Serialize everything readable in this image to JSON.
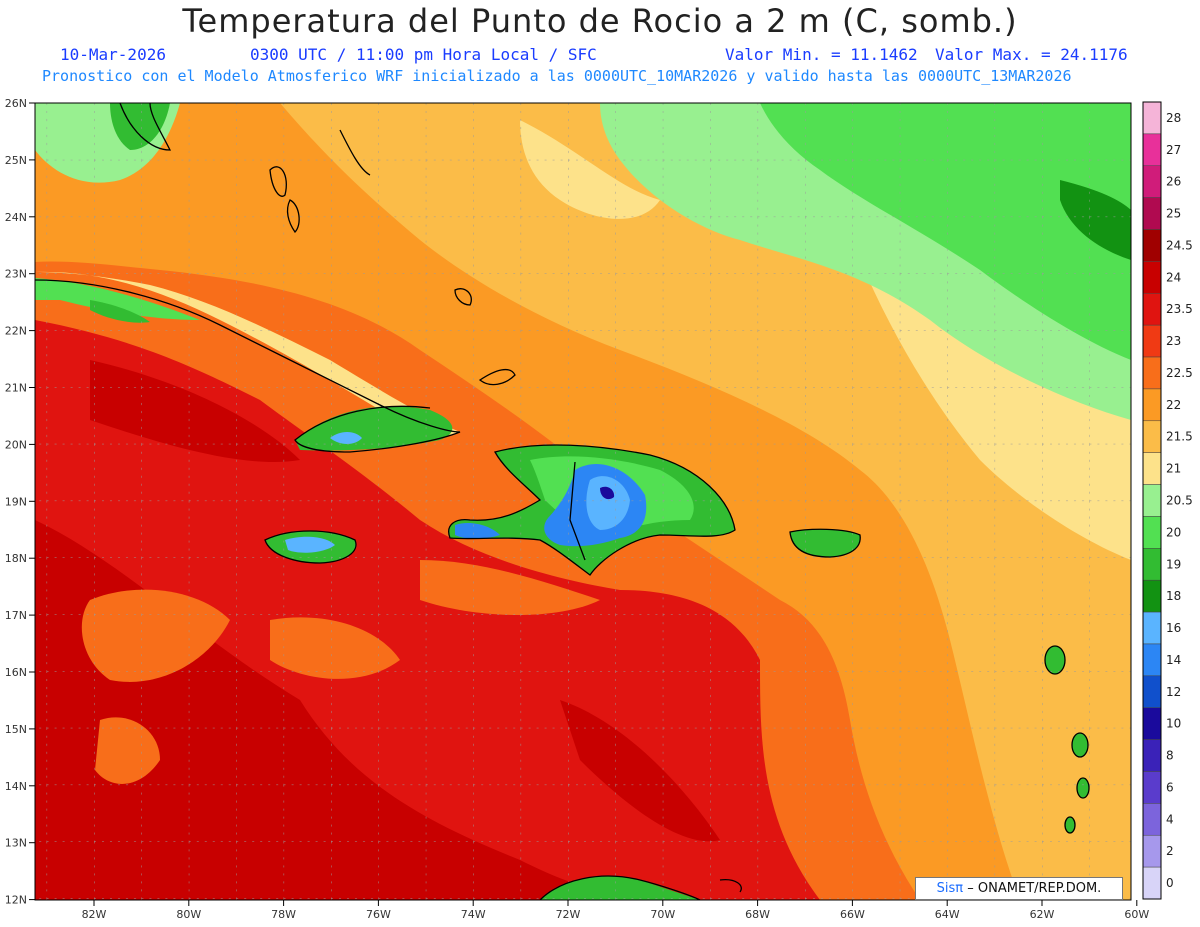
{
  "title": "Temperatura del Punto de Rocio a 2 m (C, somb.)",
  "subtitle": {
    "date": "10-Mar-2026",
    "time": "0300 UTC / 11:00 pm Hora Local / SFC",
    "min": "Valor Min. = 11.1462",
    "max": "Valor Max. = 24.1176",
    "model": "Pronostico con el Modelo Atmosferico WRF inicializado a las 0000UTC_10MAR2026 y valido hasta las 0000UTC_13MAR2026"
  },
  "axes": {
    "lon_labels": [
      "82W",
      "80W",
      "78W",
      "76W",
      "74W",
      "72W",
      "70W",
      "68W",
      "66W",
      "64W",
      "62W",
      "60W"
    ],
    "lat_labels": [
      "26N",
      "25N",
      "24N",
      "23N",
      "22N",
      "21N",
      "20N",
      "19N",
      "18N",
      "17N",
      "16N",
      "15N",
      "14N",
      "13N",
      "12N"
    ]
  },
  "colorbar": [
    {
      "label": "28",
      "color": "#f5b4d8"
    },
    {
      "label": "27",
      "color": "#e8309a"
    },
    {
      "label": "26",
      "color": "#d01c7a"
    },
    {
      "label": "25",
      "color": "#b00a50"
    },
    {
      "label": "24.5",
      "color": "#a00000"
    },
    {
      "label": "24",
      "color": "#c80000"
    },
    {
      "label": "23.5",
      "color": "#e01410"
    },
    {
      "label": "23",
      "color": "#f03a14"
    },
    {
      "label": "22.5",
      "color": "#f86e1a"
    },
    {
      "label": "22",
      "color": "#fb9a24"
    },
    {
      "label": "21.5",
      "color": "#fbbc48"
    },
    {
      "label": "21",
      "color": "#fde28a"
    },
    {
      "label": "20.5",
      "color": "#98f090"
    },
    {
      "label": "20",
      "color": "#52e052"
    },
    {
      "label": "19",
      "color": "#32bc32"
    },
    {
      "label": "18",
      "color": "#129212"
    },
    {
      "label": "16",
      "color": "#5ab4ff"
    },
    {
      "label": "14",
      "color": "#2c86f4"
    },
    {
      "label": "12",
      "color": "#1050cc"
    },
    {
      "label": "10",
      "color": "#1a0a9c"
    },
    {
      "label": "8",
      "color": "#3a22b8"
    },
    {
      "label": "6",
      "color": "#5a3ccc"
    },
    {
      "label": "4",
      "color": "#7c64dc"
    },
    {
      "label": "2",
      "color": "#a698ec"
    },
    {
      "label": "0",
      "color": "#d8d4f8"
    }
  ],
  "credit": {
    "sis": "Sisπ",
    "text": "– ONAMET/REP.DOM."
  }
}
